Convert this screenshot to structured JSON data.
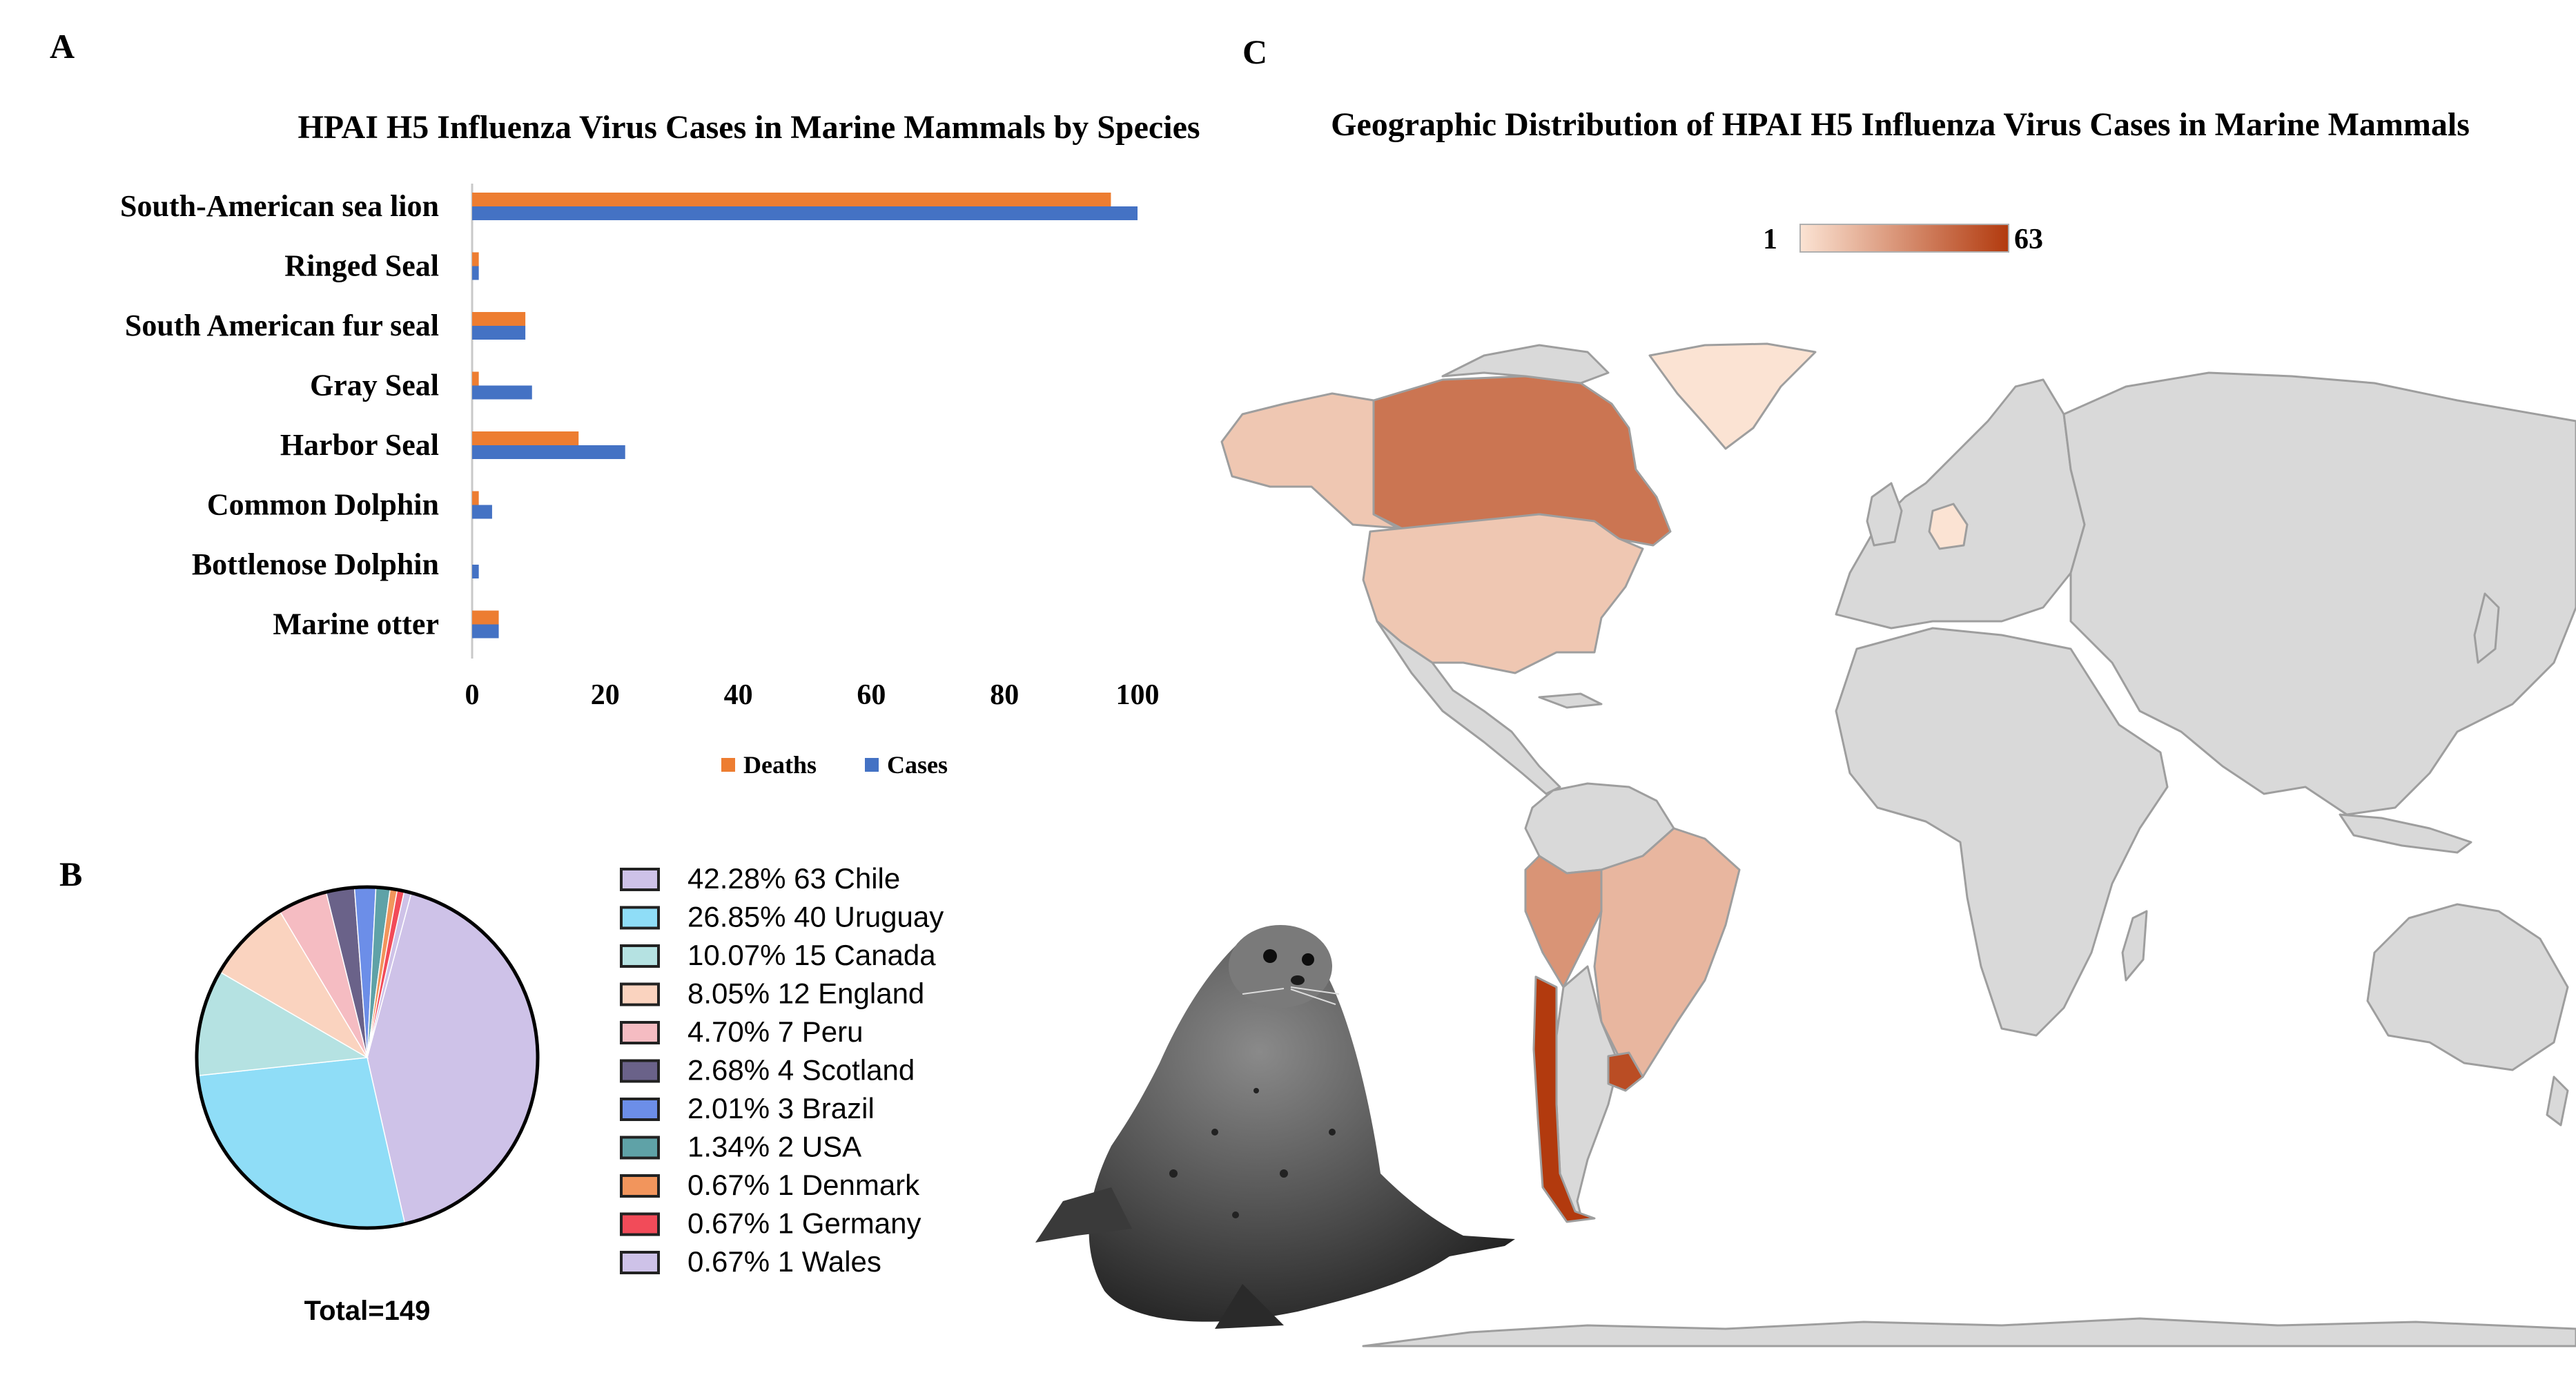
{
  "panels": {
    "a_letter": "A",
    "b_letter": "B",
    "c_letter": "C"
  },
  "chart_data": [
    {
      "type": "bar",
      "orientation": "horizontal",
      "title": "HPAI H5 Influenza Virus Cases in Marine Mammals by Species",
      "categories": [
        "South-American sea lion",
        "Ringed Seal",
        "South American fur seal",
        "Gray Seal",
        "Harbor Seal",
        "Common Dolphin",
        "Bottlenose Dolphin",
        "Marine otter"
      ],
      "series": [
        {
          "name": "Deaths",
          "color": "#ED7D31",
          "values": [
            96,
            1,
            8,
            1,
            16,
            1,
            0,
            4
          ]
        },
        {
          "name": "Cases",
          "color": "#4472C4",
          "values": [
            100,
            1,
            8,
            9,
            23,
            3,
            1,
            4
          ]
        }
      ],
      "xlim": [
        0,
        100
      ],
      "xticks": [
        0,
        20,
        40,
        60,
        80,
        100
      ],
      "legend": "bottom"
    },
    {
      "type": "pie",
      "total_label": "Total=149",
      "slices": [
        {
          "pct": "42.28%",
          "count": 63,
          "label": "Chile",
          "value": 42.28,
          "color": "#CEC2E8"
        },
        {
          "pct": "26.85%",
          "count": 40,
          "label": "Uruguay",
          "value": 26.85,
          "color": "#8FDDF7"
        },
        {
          "pct": "10.07%",
          "count": 15,
          "label": "Canada",
          "value": 10.07,
          "color": "#B5E2E2"
        },
        {
          "pct": "8.05%",
          "count": 12,
          "label": "England",
          "value": 8.05,
          "color": "#FAD3BF"
        },
        {
          "pct": "4.70%",
          "count": 7,
          "label": "Peru",
          "value": 4.7,
          "color": "#F5BCC2"
        },
        {
          "pct": "2.68%",
          "count": 4,
          "label": "Scotland",
          "value": 2.68,
          "color": "#6A6289"
        },
        {
          "pct": "2.01%",
          "count": 3,
          "label": "Brazil",
          "value": 2.01,
          "color": "#6C8EE8"
        },
        {
          "pct": "1.34%",
          "count": 2,
          "label": "USA",
          "value": 1.34,
          "color": "#5FA2A7"
        },
        {
          "pct": "0.67%",
          "count": 1,
          "label": "Denmark",
          "value": 0.67,
          "color": "#F2955C"
        },
        {
          "pct": "0.67%",
          "count": 1,
          "label": "Germany",
          "value": 0.67,
          "color": "#F24B59"
        },
        {
          "pct": "0.67%",
          "count": 1,
          "label": "Wales",
          "value": 0.67,
          "color": "#CEC2E8"
        }
      ]
    },
    {
      "type": "choropleth",
      "title": "Geographic Distribution of HPAI H5 Influenza Virus Cases in Marine Mammals",
      "scale_min_label": "1",
      "scale_max_label": "63",
      "scale_min": 1,
      "scale_max": 63,
      "colors": {
        "low": "#FBE3D3",
        "high": "#B23A0E",
        "none": "#D9D9D9",
        "border": "#9E9E9E"
      },
      "regions": [
        {
          "name": "Chile",
          "value": 63
        },
        {
          "name": "Uruguay",
          "value": 40
        },
        {
          "name": "Canada",
          "value": 15
        },
        {
          "name": "Peru",
          "value": 7
        },
        {
          "name": "Brazil",
          "value": 3
        },
        {
          "name": "USA",
          "value": 2
        },
        {
          "name": "Germany",
          "value": 1
        },
        {
          "name": "Alaska",
          "value": 2
        },
        {
          "name": "Greenland",
          "value": 1
        }
      ]
    }
  ]
}
